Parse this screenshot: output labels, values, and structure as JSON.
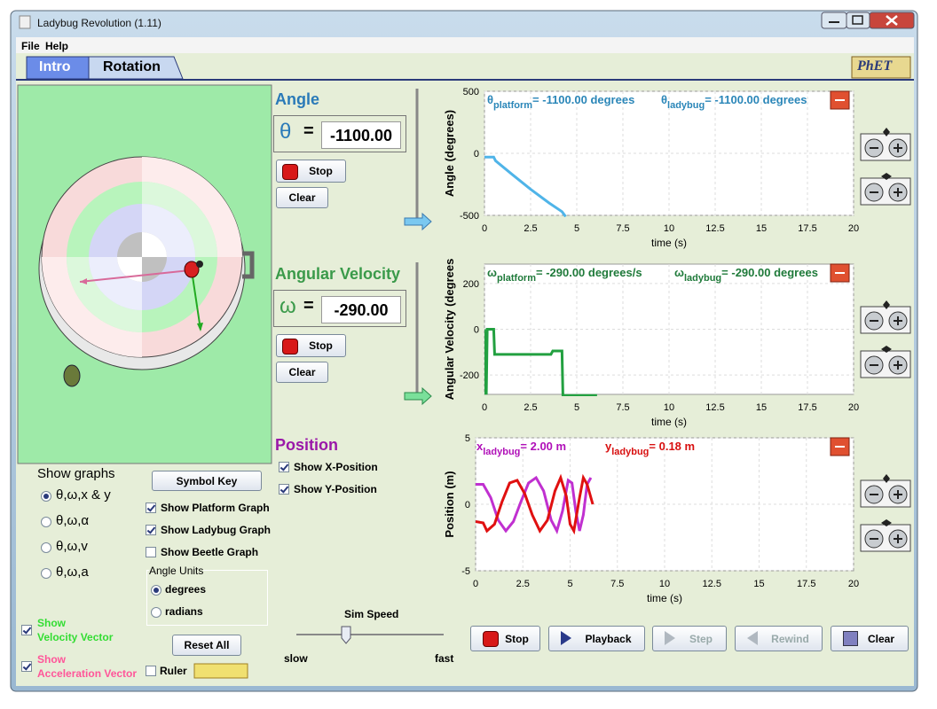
{
  "window": {
    "title": "Ladybug Revolution (1.11)"
  },
  "menu": [
    "File",
    "Help"
  ],
  "tabs": {
    "items": [
      "Intro",
      "Rotation"
    ],
    "logo": "PhET"
  },
  "angle_panel": {
    "title": "Angle",
    "symbol": "θ",
    "equals": "=",
    "value": "-1100.00",
    "stop": "Stop",
    "clear": "Clear"
  },
  "velocity_panel": {
    "title": "Angular Velocity",
    "symbol": "ω",
    "equals": "=",
    "value": "-290.00",
    "stop": "Stop",
    "clear": "Clear"
  },
  "position_panel": {
    "title": "Position",
    "checkboxes": [
      {
        "label": "Show X-Position",
        "checked": true
      },
      {
        "label": "Show Y-Position",
        "checked": true
      }
    ]
  },
  "show_graphs": {
    "title": "Show graphs",
    "options": [
      {
        "label": "θ,ω,x & y",
        "selected": true
      },
      {
        "label": "θ,ω,α",
        "selected": false
      },
      {
        "label": "θ,ω,v",
        "selected": false
      },
      {
        "label": "θ,ω,a",
        "selected": false
      }
    ]
  },
  "options": {
    "symbol_key": "Symbol Key",
    "checkboxes": [
      {
        "label": "Show Platform Graph",
        "checked": true
      },
      {
        "label": "Show Ladybug Graph",
        "checked": true
      },
      {
        "label": "Show Beetle Graph",
        "checked": false
      }
    ],
    "angle_units": {
      "title": "Angle Units",
      "options": [
        {
          "label": "degrees",
          "selected": true
        },
        {
          "label": "radians",
          "selected": false
        }
      ]
    },
    "reset_all": "Reset All",
    "ruler": {
      "label": "Ruler",
      "checked": false
    }
  },
  "vectors": {
    "velocity": {
      "lines": [
        "Show",
        "Velocity Vector"
      ],
      "checked": true,
      "color": "#33dd33"
    },
    "acceleration": {
      "lines": [
        "Show",
        "Acceleration Vector"
      ],
      "checked": true,
      "color": "#ff5599"
    }
  },
  "sim_speed": {
    "title": "Sim Speed",
    "min": "slow",
    "max": "fast"
  },
  "playback": [
    "Stop",
    "Playback",
    "Step",
    "Rewind",
    "Clear"
  ],
  "graphs": [
    {
      "ylabel": "Angle (degrees)",
      "xlabel": "time (s)",
      "xlim": [
        0,
        20
      ],
      "ylim": [
        -500,
        500
      ],
      "xticks": [
        0,
        2.5,
        5,
        7.5,
        10,
        12.5,
        15,
        17.5,
        20
      ],
      "yticks": [
        -500,
        0,
        500
      ],
      "readouts": [
        {
          "symbol": "θ",
          "subscript": "platform",
          "text": "= -1100.00 degrees",
          "color": "#2a86b8"
        },
        {
          "symbol": "θ",
          "subscript": "ladybug",
          "text": "= -1100.00 degrees",
          "color": "#2a86b8"
        }
      ],
      "series": [
        {
          "color": "#4fb4e8",
          "x": [
            0,
            0.5,
            0.6,
            1.5,
            2.5,
            3.5,
            4.2,
            4.4
          ],
          "values": [
            -30,
            -30,
            -60,
            -170,
            -290,
            -400,
            -470,
            -510
          ]
        }
      ]
    },
    {
      "ylabel": "Angular Velocity (degrees",
      "xlabel": "time (s)",
      "xlim": [
        0,
        20
      ],
      "ylim": [
        -285,
        285
      ],
      "xticks": [
        0,
        2.5,
        5,
        7.5,
        10,
        12.5,
        15,
        17.5,
        20
      ],
      "yticks": [
        -200,
        0,
        200
      ],
      "readouts": [
        {
          "symbol": "ω",
          "subscript": "platform",
          "text": "= -290.00 degrees/s",
          "color": "#1f7a3a"
        },
        {
          "symbol": "ω",
          "subscript": "ladybug",
          "text": "= -290.00 degrees",
          "color": "#1f7a3a"
        }
      ],
      "series": [
        {
          "color": "#22a040",
          "x": [
            0,
            0.05,
            0.1,
            0.15,
            0.5,
            0.55,
            3.6,
            3.7,
            4.2,
            4.25,
            6.1
          ],
          "values": [
            0,
            -280,
            -280,
            0,
            0,
            -110,
            -110,
            -95,
            -95,
            -290,
            -290
          ]
        }
      ]
    },
    {
      "ylabel": "Position (m)",
      "xlabel": "time (s)",
      "xlim": [
        0,
        20
      ],
      "ylim": [
        -5,
        5
      ],
      "xticks": [
        0,
        2.5,
        5,
        7.5,
        10,
        12.5,
        15,
        17.5,
        20
      ],
      "yticks": [
        -5,
        0,
        5
      ],
      "readouts": [
        {
          "symbol": "x",
          "subscript": "ladybug",
          "text": "= 2.00 m",
          "color": "#b010b8"
        },
        {
          "symbol": "y",
          "subscript": "ladybug",
          "text": "= 0.18 m",
          "color": "#d81010"
        }
      ],
      "series": [
        {
          "color": "#c030d0",
          "x": [
            0,
            0.4,
            0.8,
            1.2,
            1.6,
            2.0,
            2.4,
            2.8,
            3.2,
            3.6,
            4.0,
            4.3,
            4.6,
            4.9,
            5.1,
            5.3,
            5.5,
            5.7,
            5.9,
            6.1
          ],
          "values": [
            1.5,
            1.5,
            0.5,
            -1.2,
            -2,
            -1.3,
            0.2,
            1.6,
            2,
            1,
            -1.2,
            -2,
            -0.5,
            1.8,
            1.6,
            -0.5,
            -2,
            -0.8,
            1.5,
            2
          ]
        },
        {
          "color": "#e01010",
          "x": [
            0,
            0.4,
            0.6,
            1.0,
            1.4,
            1.8,
            2.2,
            2.6,
            3.0,
            3.4,
            3.8,
            4.2,
            4.5,
            4.8,
            5.0,
            5.2,
            5.5,
            5.7,
            5.9,
            6.2
          ],
          "values": [
            -1.3,
            -1.4,
            -2,
            -1.5,
            0.2,
            1.6,
            1.8,
            0.8,
            -0.8,
            -2,
            -1.2,
            1.0,
            2,
            0.6,
            -1.5,
            -2,
            0.5,
            2,
            1.5,
            0
          ]
        }
      ]
    }
  ]
}
